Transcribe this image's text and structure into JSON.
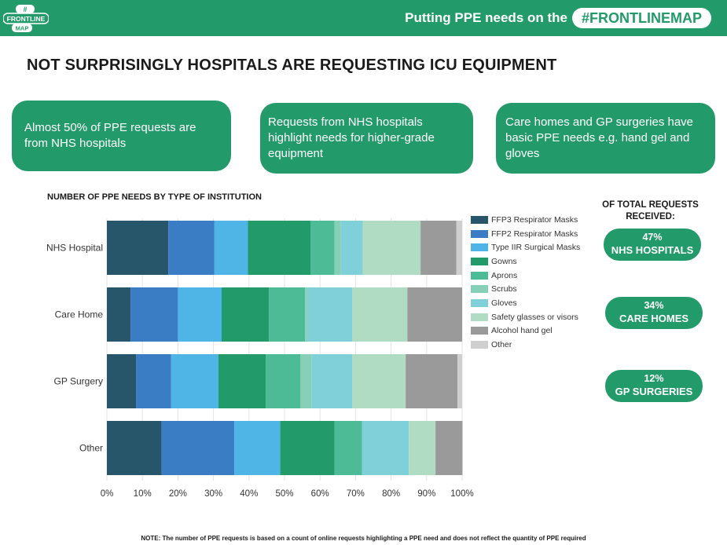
{
  "header": {
    "logo_text_top": "#",
    "logo_text_main": "FRONTLINE",
    "logo_text_bottom": "MAP",
    "tagline": "Putting PPE needs on the",
    "tagline_highlight": "#FRONTLINEMAP"
  },
  "page": {
    "title": "NOT SURPRISINGLY HOSPITALS ARE REQUESTING ICU EQUIPMENT"
  },
  "cards": [
    {
      "text": "Almost 50% of PPE requests are from NHS hospitals"
    },
    {
      "text": "Requests from NHS hospitals highlight needs for higher-grade equipment"
    },
    {
      "text": "Care homes and GP surgeries have basic PPE needs e.g. hand gel and gloves"
    }
  ],
  "totals": {
    "heading": "OF TOTAL REQUESTS RECEIVED:",
    "items": [
      {
        "percent": "47%",
        "label": "NHS HOSPITALS"
      },
      {
        "percent": "34%",
        "label": "CARE HOMES"
      },
      {
        "percent": "12%",
        "label": "GP SURGERIES"
      }
    ]
  },
  "footnote": "NOTE: The number of PPE requests is based on a count of online requests highlighting a PPE need and does not reflect the quantity of PPE required",
  "colors": {
    "brand_green": "#239a6a"
  },
  "chart_data": {
    "type": "bar",
    "orientation": "horizontal",
    "stacked": true,
    "title": "NUMBER OF PPE NEEDS BY TYPE OF INSTITUTION",
    "categories": [
      "NHS Hospital",
      "Care Home",
      "GP Surgery",
      "Other"
    ],
    "xlim": [
      0,
      100
    ],
    "x_ticks": [
      "0%",
      "10%",
      "20%",
      "30%",
      "40%",
      "50%",
      "60%",
      "70%",
      "80%",
      "90%",
      "100%"
    ],
    "grid": true,
    "legend_position": "right",
    "series": [
      {
        "name": "FFP3 Respirator Masks",
        "color": "#27566b",
        "values": [
          17.3,
          6.7,
          8.2,
          15.4
        ]
      },
      {
        "name": "FFP2 Respirator Masks",
        "color": "#3b7dc4",
        "values": [
          12.9,
          13.3,
          9.9,
          20.5
        ]
      },
      {
        "name": "Type IIR Surgical Masks",
        "color": "#4fb4e6",
        "values": [
          9.5,
          12.3,
          13.3,
          12.9
        ]
      },
      {
        "name": "Gowns",
        "color": "#239a6a",
        "values": [
          17.6,
          13.3,
          13.3,
          15.3
        ]
      },
      {
        "name": "Aprons",
        "color": "#4dbb96",
        "values": [
          6.8,
          10.2,
          9.8,
          7.7
        ]
      },
      {
        "name": "Scrubs",
        "color": "#86d0b8",
        "values": [
          1.8,
          0.6,
          3.1,
          0
        ]
      },
      {
        "name": "Gloves",
        "color": "#7fd0d8",
        "values": [
          6.1,
          12.7,
          11.5,
          13.2
        ]
      },
      {
        "name": "Safety glasses or visors",
        "color": "#b0dcc3",
        "values": [
          16.3,
          15.5,
          15.0,
          7.5
        ]
      },
      {
        "name": "Alcohol hand gel",
        "color": "#9a9a9a",
        "values": [
          10.1,
          15.4,
          14.6,
          7.6
        ]
      },
      {
        "name": "Other",
        "color": "#cfcfcf",
        "values": [
          1.6,
          0,
          1.3,
          0
        ]
      }
    ]
  }
}
